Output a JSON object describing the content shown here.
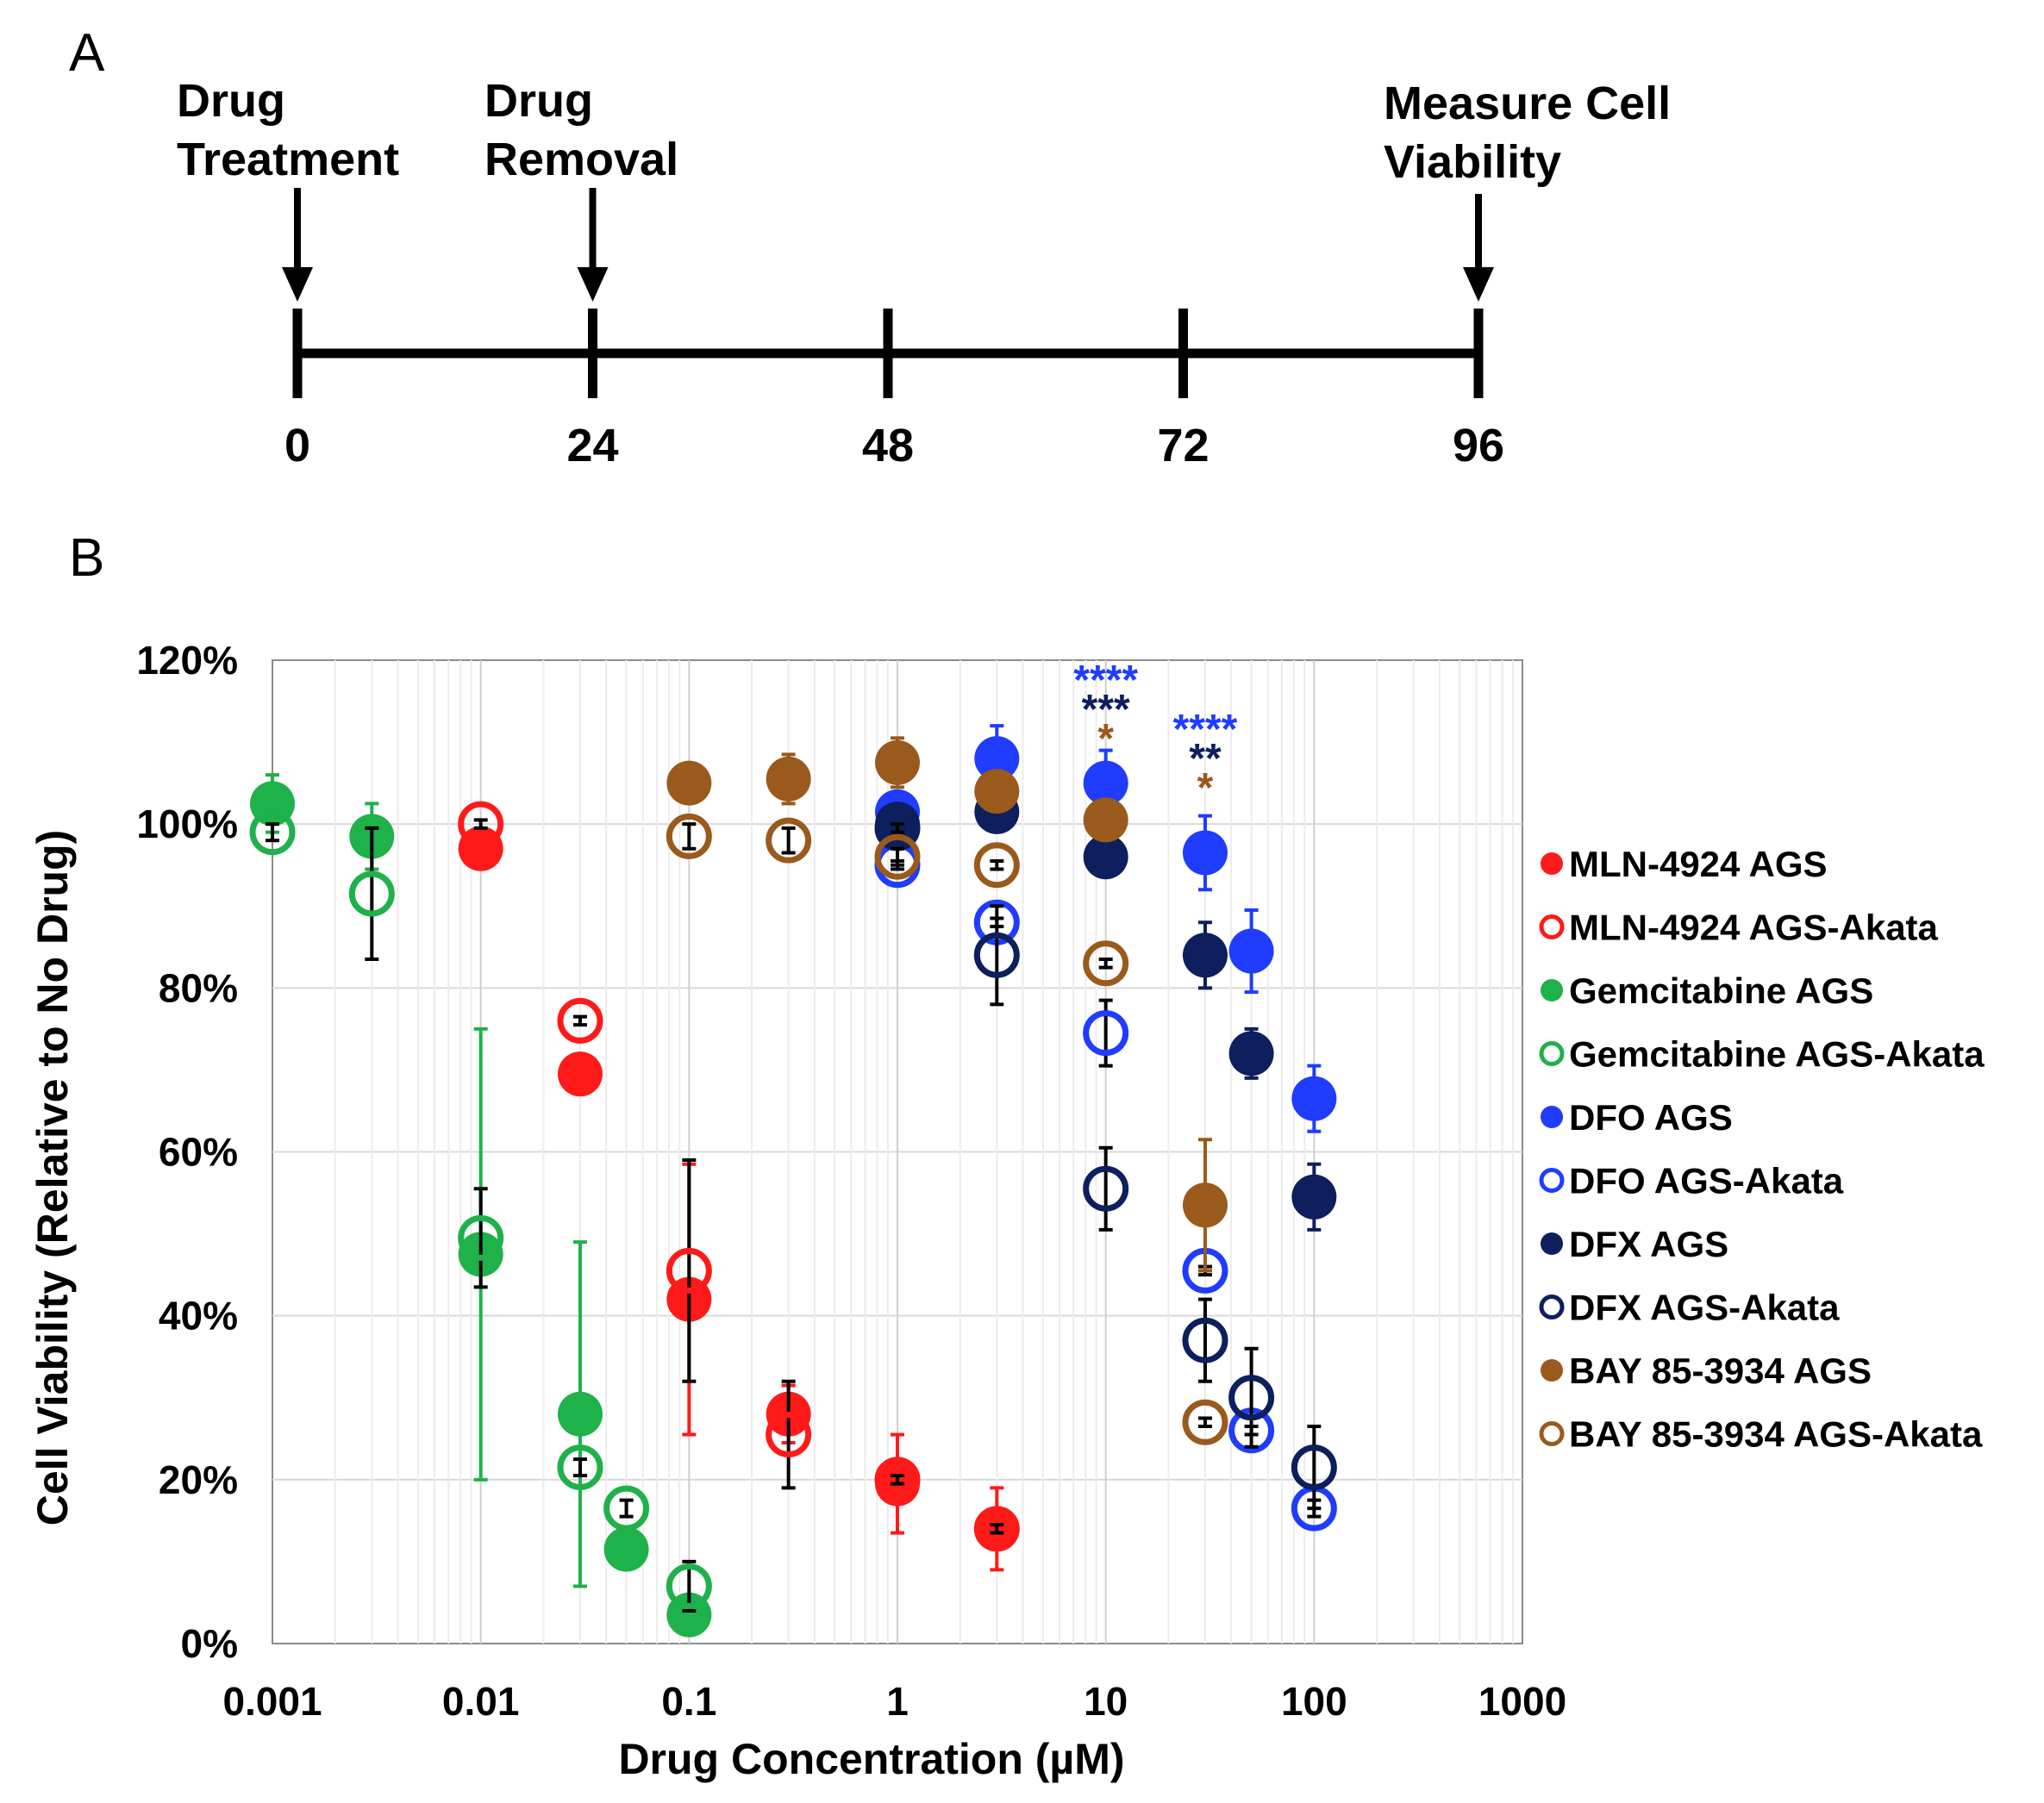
{
  "panel_a": {
    "label": "A",
    "events": [
      {
        "lines": [
          "Drug",
          "Treatment"
        ],
        "hour": 0
      },
      {
        "lines": [
          "Drug",
          "Removal"
        ],
        "hour": 24
      },
      {
        "lines": [
          "Measure Cell",
          "Viability"
        ],
        "hour": 96
      }
    ],
    "ticks": [
      "0",
      "24",
      "48",
      "72",
      "96"
    ]
  },
  "panel_b": {
    "label": "B"
  },
  "chart_data": {
    "type": "scatter",
    "title": "",
    "xlabel": "Drug Concentration (µM)",
    "ylabel": "Cell Viability (Relative to No Drug)",
    "xscale": "log",
    "xlim": [
      0.001,
      1000
    ],
    "ylim": [
      0,
      120
    ],
    "x_tick_labels": [
      "0.001",
      "0.01",
      "0.1",
      "1",
      "10",
      "100",
      "1000"
    ],
    "y_tick_labels": [
      "0%",
      "20%",
      "40%",
      "60%",
      "80%",
      "100%",
      "120%"
    ],
    "grid": true,
    "legend_position": "right",
    "series": [
      {
        "name": "MLN-4924 AGS",
        "color": "#ff1a1a",
        "marker": "filled",
        "points": [
          {
            "x": 0.01,
            "y": 97,
            "err": 0.5
          },
          {
            "x": 0.03,
            "y": 69.5,
            "err": 2
          },
          {
            "x": 0.1,
            "y": 42,
            "err": 16.5
          },
          {
            "x": 0.3,
            "y": 28,
            "err": 3.5
          },
          {
            "x": 1,
            "y": 19.5,
            "err": 6
          },
          {
            "x": 3,
            "y": 14,
            "err": 5
          }
        ]
      },
      {
        "name": "MLN-4924 AGS-Akata",
        "color": "#ff1a1a",
        "marker": "open",
        "points": [
          {
            "x": 0.01,
            "y": 100,
            "err": 0.5
          },
          {
            "x": 0.03,
            "y": 76,
            "err": 0.5
          },
          {
            "x": 0.1,
            "y": 45.5,
            "err": 13.5
          },
          {
            "x": 0.3,
            "y": 25.5,
            "err": 6.5
          },
          {
            "x": 1,
            "y": 20,
            "err": 0.5
          },
          {
            "x": 3,
            "y": 14,
            "err": 0.5
          }
        ]
      },
      {
        "name": "Gemcitabine AGS",
        "color": "#1fb14a",
        "marker": "filled",
        "points": [
          {
            "x": 0.001,
            "y": 102.5,
            "err": 3.5
          },
          {
            "x": 0.003,
            "y": 98.5,
            "err": 4
          },
          {
            "x": 0.01,
            "y": 47.5,
            "err": 27.5
          },
          {
            "x": 0.03,
            "y": 28,
            "err": 21
          },
          {
            "x": 0.05,
            "y": 11.5,
            "err": 0.5
          },
          {
            "x": 0.1,
            "y": 3.5,
            "err": 0.5
          }
        ]
      },
      {
        "name": "Gemcitabine AGS-Akata",
        "color": "#1fb14a",
        "marker": "open",
        "points": [
          {
            "x": 0.001,
            "y": 99,
            "err": 1
          },
          {
            "x": 0.003,
            "y": 91.5,
            "err": 8
          },
          {
            "x": 0.01,
            "y": 49.5,
            "err": 6
          },
          {
            "x": 0.03,
            "y": 21.5,
            "err": 1
          },
          {
            "x": 0.05,
            "y": 16.5,
            "err": 1
          },
          {
            "x": 0.1,
            "y": 7,
            "err": 3
          }
        ]
      },
      {
        "name": "DFO AGS",
        "color": "#1f3cff",
        "marker": "filled",
        "points": [
          {
            "x": 1,
            "y": 101.5,
            "err": 0.5
          },
          {
            "x": 3,
            "y": 108,
            "err": 4
          },
          {
            "x": 10,
            "y": 105,
            "err": 4
          },
          {
            "x": 30,
            "y": 96.5,
            "err": 4.5
          },
          {
            "x": 50,
            "y": 84.5,
            "err": 5
          },
          {
            "x": 100,
            "y": 66.5,
            "err": 4
          }
        ]
      },
      {
        "name": "DFO AGS-Akata",
        "color": "#1f3cff",
        "marker": "open",
        "points": [
          {
            "x": 1,
            "y": 95,
            "err": 0.5
          },
          {
            "x": 3,
            "y": 88,
            "err": 0.5
          },
          {
            "x": 10,
            "y": 74.5,
            "err": 4
          },
          {
            "x": 30,
            "y": 45.5,
            "err": 0.5
          },
          {
            "x": 50,
            "y": 26,
            "err": 0.5
          },
          {
            "x": 100,
            "y": 16.5,
            "err": 1
          }
        ]
      },
      {
        "name": "DFX AGS",
        "color": "#0d1f5c",
        "marker": "filled",
        "points": [
          {
            "x": 1,
            "y": 100,
            "err": 1
          },
          {
            "x": 3,
            "y": 101.5,
            "err": 0.5
          },
          {
            "x": 10,
            "y": 96,
            "err": 0.5
          },
          {
            "x": 30,
            "y": 84,
            "err": 4
          },
          {
            "x": 50,
            "y": 72,
            "err": 3
          },
          {
            "x": 100,
            "y": 54.5,
            "err": 4
          }
        ]
      },
      {
        "name": "DFX AGS-Akata",
        "color": "#0d1f5c",
        "marker": "open",
        "points": [
          {
            "x": 1,
            "y": 99.5,
            "err": 0.5
          },
          {
            "x": 3,
            "y": 84,
            "err": 6
          },
          {
            "x": 10,
            "y": 55.5,
            "err": 5
          },
          {
            "x": 30,
            "y": 37,
            "err": 5
          },
          {
            "x": 50,
            "y": 30,
            "err": 6
          },
          {
            "x": 100,
            "y": 21.5,
            "err": 5
          }
        ]
      },
      {
        "name": "BAY 85-3934 AGS",
        "color": "#9a5a1c",
        "marker": "filled",
        "points": [
          {
            "x": 0.1,
            "y": 105,
            "err": 0.5
          },
          {
            "x": 0.3,
            "y": 105.5,
            "err": 3
          },
          {
            "x": 1,
            "y": 107.5,
            "err": 3
          },
          {
            "x": 3,
            "y": 104,
            "err": 0.5
          },
          {
            "x": 10,
            "y": 100.5,
            "err": 0.5
          },
          {
            "x": 30,
            "y": 53.5,
            "err": 8
          }
        ]
      },
      {
        "name": "BAY 85-3934 AGS-Akata",
        "color": "#9a5a1c",
        "marker": "open",
        "points": [
          {
            "x": 0.1,
            "y": 98.5,
            "err": 1.5
          },
          {
            "x": 0.3,
            "y": 98,
            "err": 1.5
          },
          {
            "x": 1,
            "y": 96,
            "err": 1
          },
          {
            "x": 3,
            "y": 95,
            "err": 0.5
          },
          {
            "x": 10,
            "y": 83,
            "err": 0.5
          },
          {
            "x": 30,
            "y": 27,
            "err": 0.5
          }
        ]
      }
    ],
    "annotations": [
      {
        "x": 10,
        "text": "****",
        "color": "#1f3cff",
        "row": 0
      },
      {
        "x": 10,
        "text": "***",
        "color": "#0d1f5c",
        "row": 1
      },
      {
        "x": 10,
        "text": "*",
        "color": "#9a5a1c",
        "row": 2
      },
      {
        "x": 30,
        "text": "****",
        "color": "#1f3cff",
        "row": 0
      },
      {
        "x": 30,
        "text": "**",
        "color": "#0d1f5c",
        "row": 1
      },
      {
        "x": 30,
        "text": "*",
        "color": "#9a5a1c",
        "row": 2
      }
    ]
  }
}
